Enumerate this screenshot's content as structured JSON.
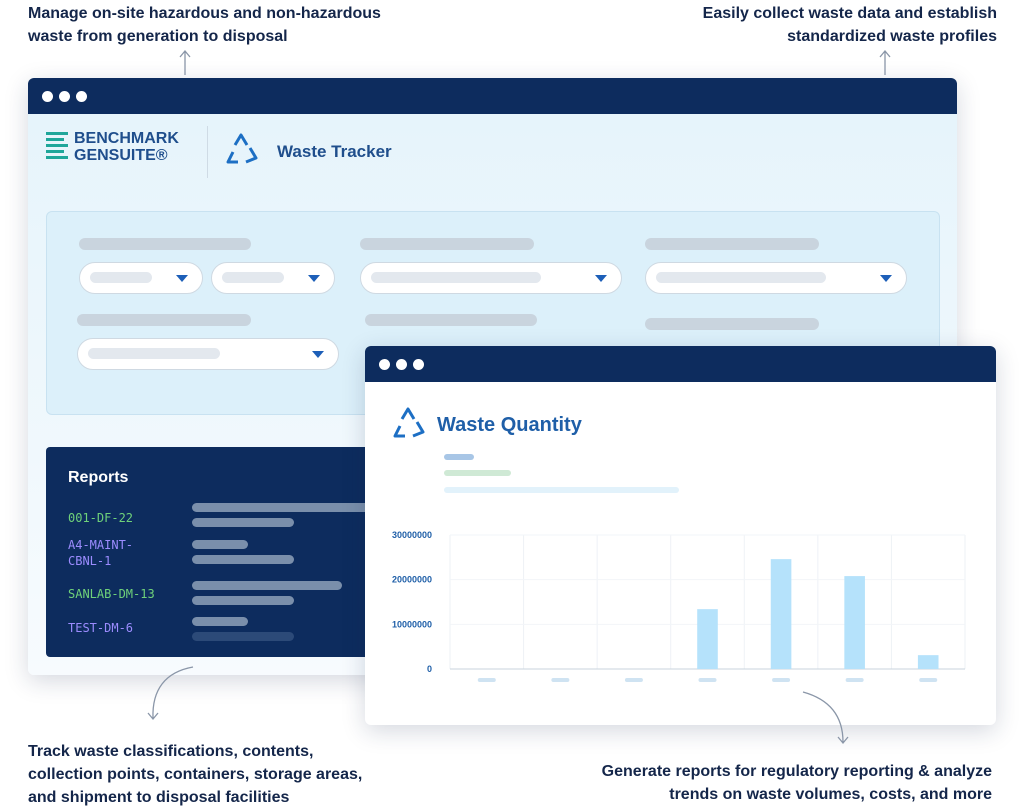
{
  "captions": {
    "top_left": "Manage on-site hazardous and non-hazardous waste from generation to disposal",
    "top_right": "Easily collect waste data and establish standardized waste profiles",
    "bottom_left": "Track waste classifications, contents, collection points, containers, storage areas, and shipment to disposal facilities",
    "bottom_right": "Generate reports for regulatory reporting & analyze trends on waste volumes, costs, and more"
  },
  "brand": {
    "line1": "BENCHMARK",
    "line2": "GENSUITE®"
  },
  "app_title": "Waste Tracker",
  "reports": {
    "title": "Reports",
    "items": [
      "001-DF-22",
      "A4-MAINT-CBNL-1",
      "SANLAB-DM-13",
      "TEST-DM-6"
    ]
  },
  "chart_data": {
    "type": "bar",
    "title": "Waste Quantity",
    "categories": [
      null,
      null,
      null,
      null,
      null,
      null,
      null
    ],
    "values": [
      0,
      0,
      0,
      13400000,
      24600000,
      20800000,
      3100000
    ],
    "color": "#b5e2fb",
    "ylim": [
      0,
      30000000
    ],
    "yticks": [
      0,
      10000000,
      20000000,
      30000000
    ],
    "grid": true
  }
}
